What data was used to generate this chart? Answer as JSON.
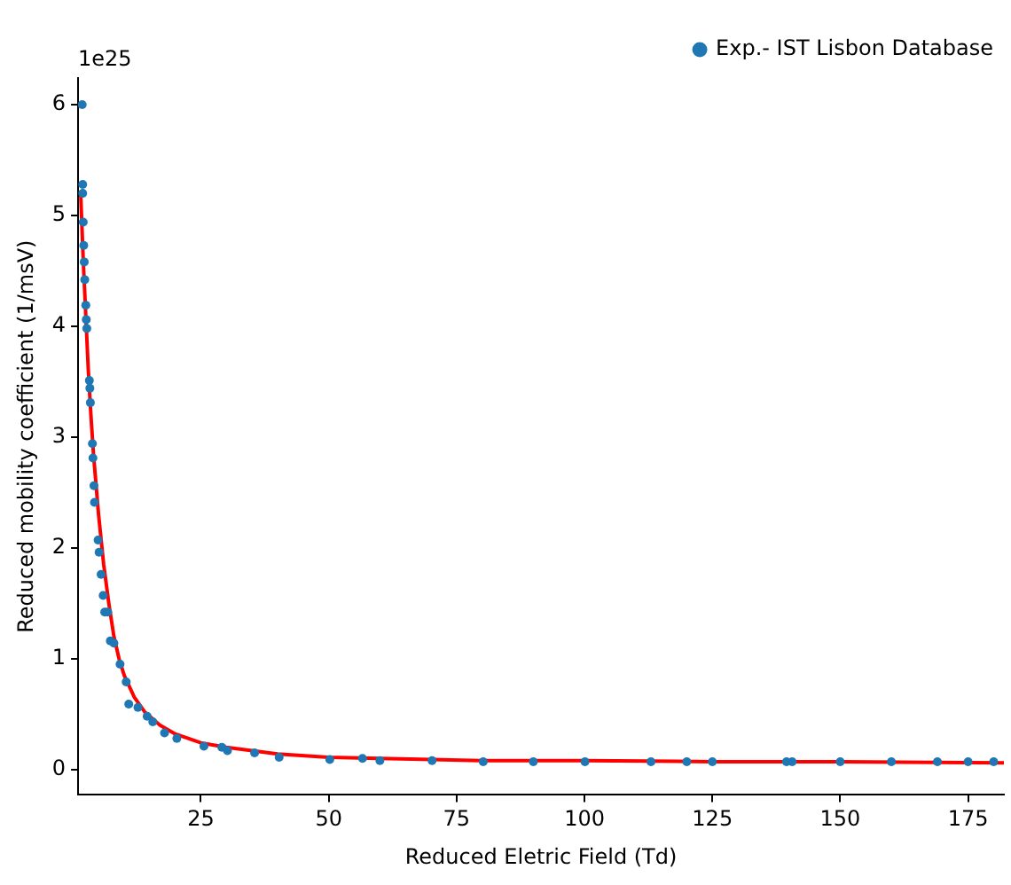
{
  "chart_data": {
    "type": "scatter",
    "xlabel": "Reduced Eletric Field (Td)",
    "ylabel": "Reduced mobility coefficient (1/msV)",
    "annotations": [
      "1e25"
    ],
    "xlim": [
      1,
      182
    ],
    "xticks": [
      25,
      50,
      75,
      100,
      125,
      150,
      175
    ],
    "ylim": [
      -0.23,
      6.24
    ],
    "yticks": [
      0,
      1,
      2,
      3,
      4,
      5,
      6
    ],
    "grid": false,
    "legend": "top right",
    "series": [
      {
        "type": "line",
        "color": "#ff0000",
        "x": [
          1.5,
          2,
          2.5,
          3,
          3.5,
          4,
          5,
          6,
          7,
          8,
          9,
          10,
          12,
          14,
          17,
          20,
          25,
          30,
          40,
          50,
          60,
          80,
          100,
          125,
          150,
          182
        ],
        "values": [
          5.2,
          4.6,
          4.1,
          3.6,
          3.2,
          2.85,
          2.3,
          1.85,
          1.5,
          1.2,
          1.0,
          0.85,
          0.65,
          0.52,
          0.4,
          0.32,
          0.24,
          0.2,
          0.14,
          0.11,
          0.1,
          0.08,
          0.08,
          0.07,
          0.07,
          0.06
        ]
      },
      {
        "name": "Exp.- IST Lisbon Database",
        "color": "#1f77b4",
        "marker": "circle",
        "x": [
          1.8,
          1.9,
          1.9,
          2.0,
          2.1,
          2.2,
          2.3,
          2.5,
          2.6,
          2.7,
          3.2,
          3.3,
          3.4,
          3.8,
          3.9,
          4.1,
          4.2,
          4.9,
          5.1,
          5.5,
          5.9,
          6.2,
          6.8,
          7.3,
          8.0,
          9.2,
          10.4,
          10.9,
          12.7,
          14.5,
          15.6,
          17.9,
          20.3,
          25.6,
          29.1,
          30.2,
          35.5,
          40.3,
          50.2,
          56.6,
          60,
          70.2,
          80.2,
          90,
          100.1,
          113,
          120,
          125,
          139.5,
          140.6,
          150,
          160,
          169,
          175,
          180
        ],
        "values": [
          6.0,
          5.28,
          5.2,
          4.94,
          4.73,
          4.58,
          4.42,
          4.19,
          4.06,
          3.98,
          3.51,
          3.44,
          3.31,
          2.94,
          2.81,
          2.56,
          2.41,
          2.07,
          1.96,
          1.76,
          1.57,
          1.42,
          1.42,
          1.16,
          1.14,
          0.95,
          0.79,
          0.59,
          0.56,
          0.48,
          0.43,
          0.33,
          0.28,
          0.21,
          0.2,
          0.17,
          0.15,
          0.11,
          0.09,
          0.1,
          0.08,
          0.08,
          0.07,
          0.07,
          0.07,
          0.07,
          0.07,
          0.07,
          0.07,
          0.07,
          0.07,
          0.07,
          0.07,
          0.07,
          0.07
        ]
      }
    ]
  }
}
